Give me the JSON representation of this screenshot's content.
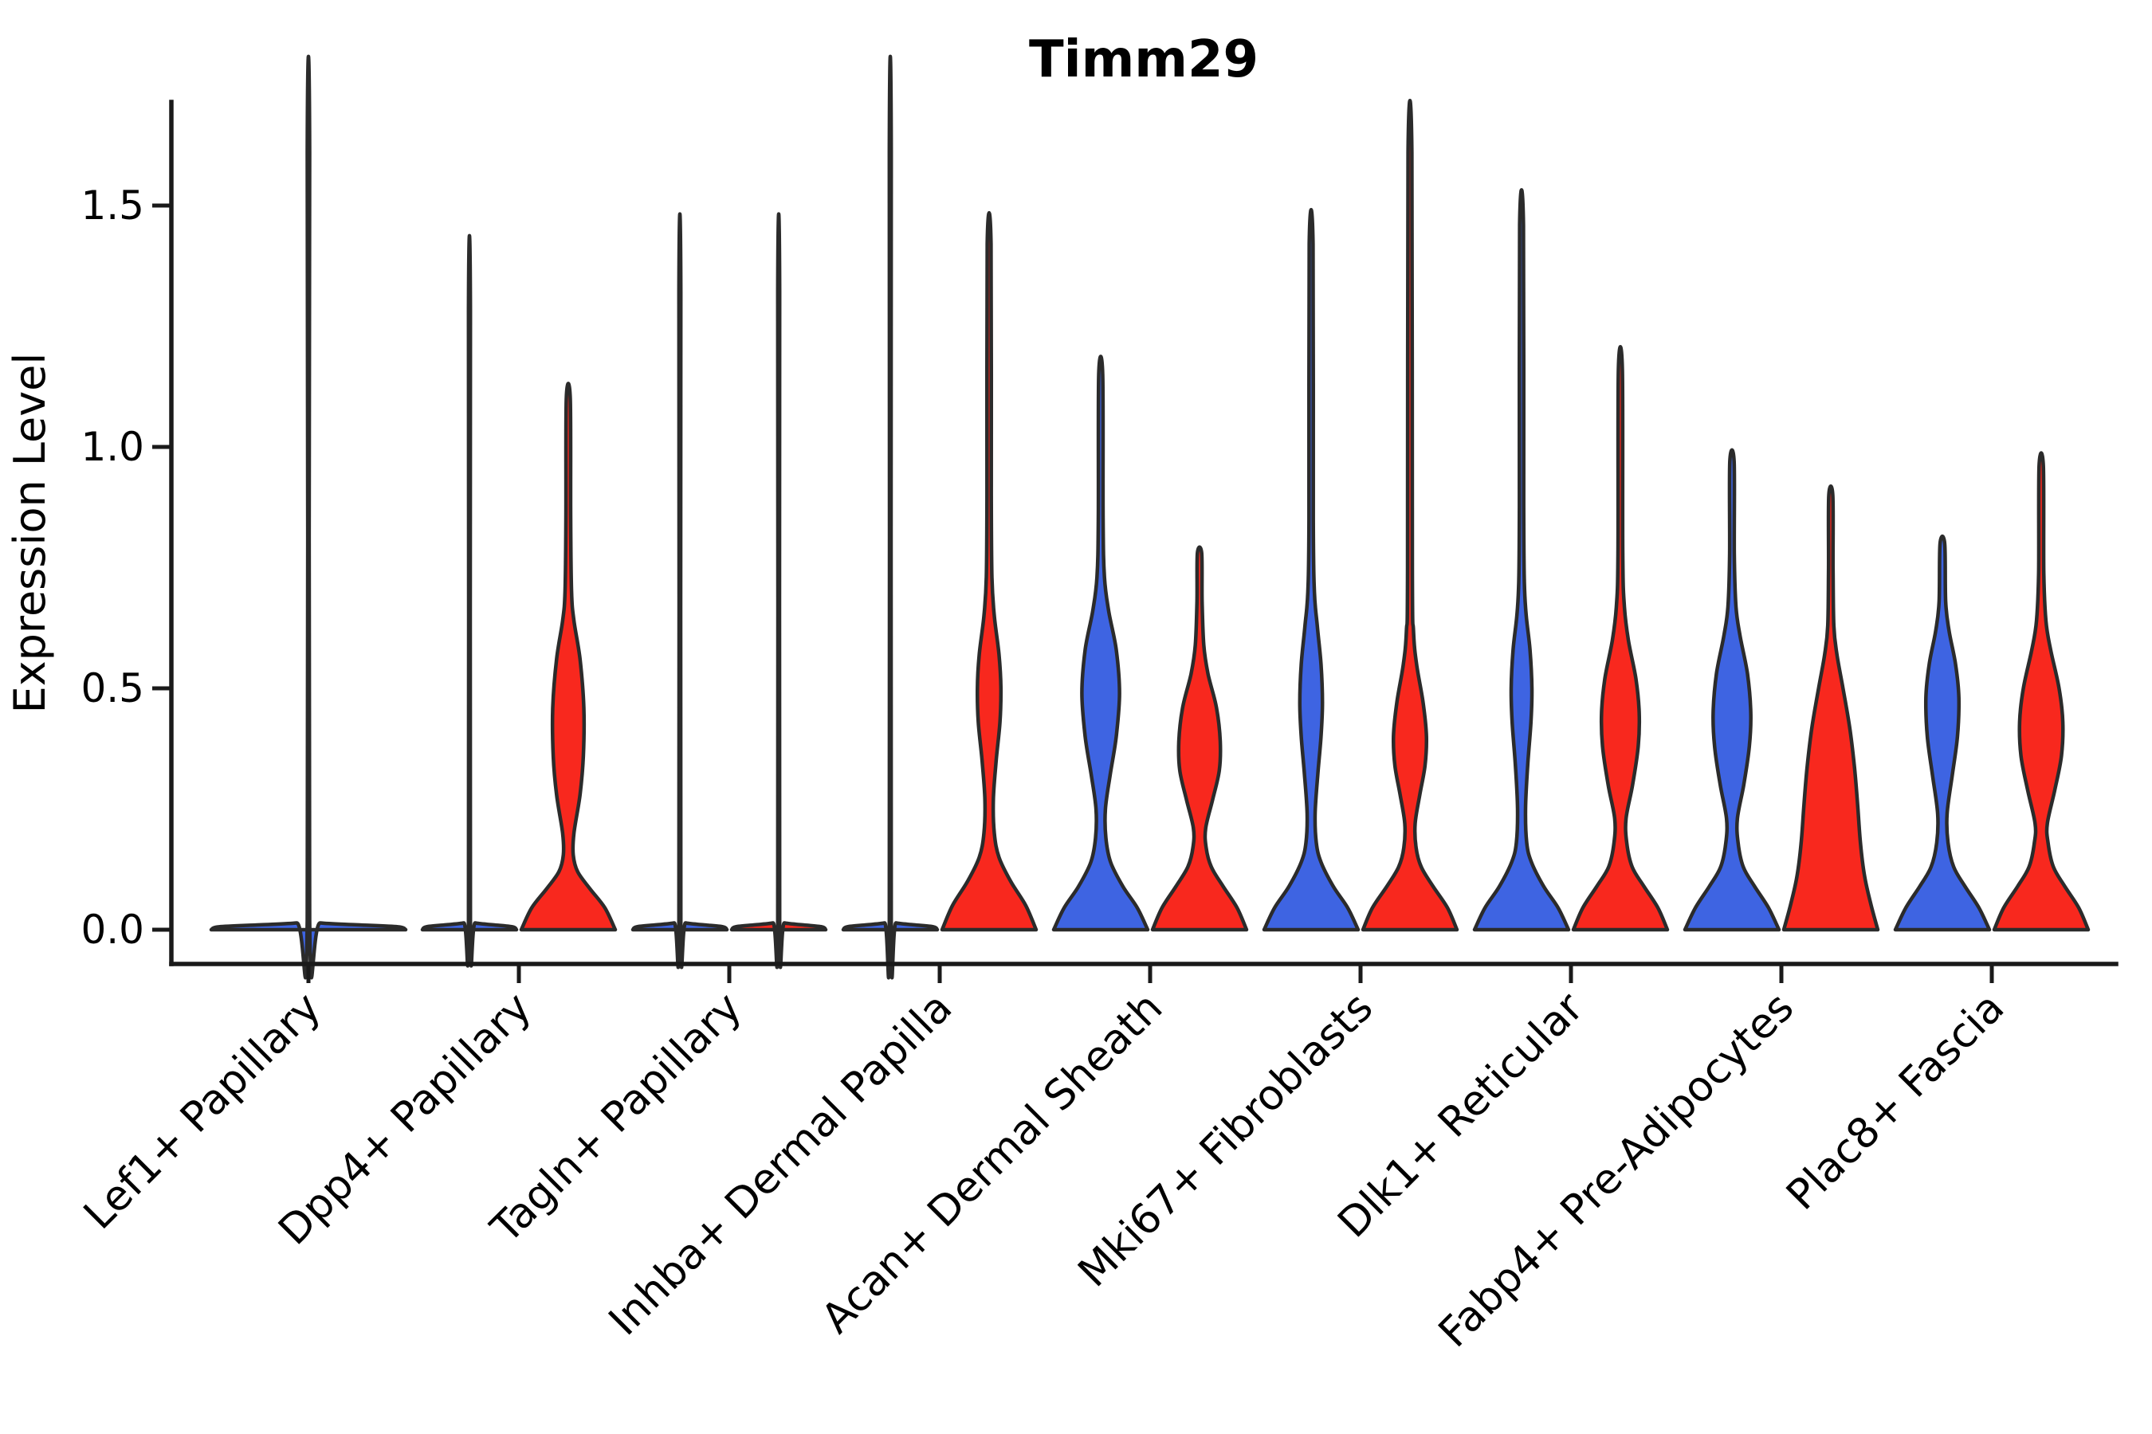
{
  "title": "Timm29",
  "y_axis": {
    "label": "Expression Level",
    "tick_labels": [
      "0.0",
      "0.5",
      "1.0",
      "1.5"
    ]
  },
  "x_axis": {
    "categories": [
      "Lef1+ Papillary",
      "Dpp4+ Papillary",
      "Tagln+ Papillary",
      "Inhba+ Dermal Papilla",
      "Acan+ Dermal Sheath",
      "Mki67+ Fibroblasts",
      "Dlk1+ Reticular",
      "Fabp4+ Pre-Adipocytes",
      "Plac8+ Fascia"
    ]
  },
  "colors": {
    "blue": "#3E64E2",
    "red": "#F8281E",
    "outline": "#2B2B2B",
    "axis": "#1a1a1a",
    "background": "#FFFFFF"
  },
  "chart_data": {
    "type": "violin",
    "title": "Timm29",
    "xlabel": "",
    "ylabel": "Expression Level",
    "ylim": [
      -0.07,
      1.72
    ],
    "y_tick_values": [
      0.0,
      0.5,
      1.0,
      1.5
    ],
    "grid": false,
    "legend": "none",
    "categories": [
      "Lef1+ Papillary",
      "Dpp4+ Papillary",
      "Tagln+ Papillary",
      "Inhba+ Dermal Papilla",
      "Acan+ Dermal Sheath",
      "Mki67+ Fibroblasts",
      "Dlk1+ Reticular",
      "Fabp4+ Pre-Adipocytes",
      "Plac8+ Fascia"
    ],
    "series": [
      {
        "name": "blue",
        "max_values": [
          1.61,
          1.28,
          1.32,
          1.61,
          1.15,
          1.42,
          1.46,
          0.97,
          0.8
        ]
      },
      {
        "name": "red",
        "max_values": [
          null,
          1.1,
          1.32,
          1.42,
          0.78,
          1.61,
          1.16,
          0.9,
          0.96
        ]
      }
    ],
    "violins": [
      {
        "category": "Lef1+ Papillary",
        "color": "blue",
        "side": "full",
        "flat": true,
        "max": 1.61,
        "profile": [
          [
            0,
            1
          ],
          [
            0.006,
            0.92
          ],
          [
            0.01,
            0.5
          ],
          [
            0.014,
            0.12
          ],
          [
            0.02,
            0.012
          ],
          [
            1.61,
            0.012
          ]
        ]
      },
      {
        "category": "Dpp4+ Papillary",
        "color": "blue",
        "side": "left",
        "flat": true,
        "max": 1.28,
        "profile": [
          [
            0,
            1
          ],
          [
            0.006,
            0.92
          ],
          [
            0.01,
            0.5
          ],
          [
            0.014,
            0.12
          ],
          [
            0.02,
            0.02
          ],
          [
            1.28,
            0.02
          ]
        ]
      },
      {
        "category": "Dpp4+ Papillary",
        "color": "red",
        "side": "right",
        "flat": false,
        "max": 1.1,
        "profile": [
          [
            0,
            1
          ],
          [
            0.045,
            0.78
          ],
          [
            0.085,
            0.46
          ],
          [
            0.12,
            0.2
          ],
          [
            0.155,
            0.105
          ],
          [
            0.2,
            0.12
          ],
          [
            0.28,
            0.25
          ],
          [
            0.36,
            0.32
          ],
          [
            0.46,
            0.33
          ],
          [
            0.56,
            0.25
          ],
          [
            0.64,
            0.12
          ],
          [
            0.7,
            0.07
          ],
          [
            0.85,
            0.05
          ],
          [
            1.1,
            0.042
          ]
        ]
      },
      {
        "category": "Tagln+ Papillary",
        "color": "blue",
        "side": "left",
        "flat": true,
        "max": 1.32,
        "profile": [
          [
            0,
            1
          ],
          [
            0.006,
            0.92
          ],
          [
            0.01,
            0.5
          ],
          [
            0.014,
            0.12
          ],
          [
            0.02,
            0.02
          ],
          [
            1.32,
            0.02
          ]
        ]
      },
      {
        "category": "Tagln+ Papillary",
        "color": "red",
        "side": "right",
        "flat": true,
        "max": 1.32,
        "profile": [
          [
            0,
            1
          ],
          [
            0.006,
            0.92
          ],
          [
            0.01,
            0.5
          ],
          [
            0.014,
            0.12
          ],
          [
            0.02,
            0.02
          ],
          [
            1.32,
            0.02
          ]
        ]
      },
      {
        "category": "Inhba+ Dermal Papilla",
        "color": "blue",
        "side": "left",
        "flat": true,
        "max": 1.61,
        "profile": [
          [
            0,
            1
          ],
          [
            0.006,
            0.92
          ],
          [
            0.01,
            0.5
          ],
          [
            0.014,
            0.12
          ],
          [
            0.02,
            0.02
          ],
          [
            1.61,
            0.02
          ]
        ]
      },
      {
        "category": "Inhba+ Dermal Papilla",
        "color": "red",
        "side": "right",
        "flat": false,
        "max": 1.42,
        "profile": [
          [
            0,
            1
          ],
          [
            0.05,
            0.78
          ],
          [
            0.1,
            0.46
          ],
          [
            0.15,
            0.21
          ],
          [
            0.2,
            0.11
          ],
          [
            0.27,
            0.09
          ],
          [
            0.35,
            0.15
          ],
          [
            0.43,
            0.23
          ],
          [
            0.5,
            0.25
          ],
          [
            0.57,
            0.21
          ],
          [
            0.65,
            0.11
          ],
          [
            0.73,
            0.06
          ],
          [
            0.9,
            0.045
          ],
          [
            1.42,
            0.04
          ]
        ]
      },
      {
        "category": "Acan+ Dermal Sheath",
        "color": "blue",
        "side": "left",
        "flat": false,
        "max": 1.15,
        "profile": [
          [
            0,
            1
          ],
          [
            0.045,
            0.78
          ],
          [
            0.09,
            0.47
          ],
          [
            0.14,
            0.21
          ],
          [
            0.19,
            0.11
          ],
          [
            0.25,
            0.1
          ],
          [
            0.32,
            0.2
          ],
          [
            0.4,
            0.33
          ],
          [
            0.49,
            0.4
          ],
          [
            0.58,
            0.33
          ],
          [
            0.66,
            0.17
          ],
          [
            0.73,
            0.08
          ],
          [
            0.85,
            0.05
          ],
          [
            1.15,
            0.042
          ]
        ]
      },
      {
        "category": "Acan+ Dermal Sheath",
        "color": "red",
        "side": "right",
        "flat": false,
        "max": 0.78,
        "profile": [
          [
            0,
            1
          ],
          [
            0.045,
            0.8
          ],
          [
            0.09,
            0.5
          ],
          [
            0.13,
            0.25
          ],
          [
            0.17,
            0.14
          ],
          [
            0.21,
            0.13
          ],
          [
            0.27,
            0.28
          ],
          [
            0.33,
            0.42
          ],
          [
            0.39,
            0.44
          ],
          [
            0.46,
            0.36
          ],
          [
            0.53,
            0.18
          ],
          [
            0.59,
            0.09
          ],
          [
            0.68,
            0.055
          ],
          [
            0.78,
            0.045
          ]
        ]
      },
      {
        "category": "Mki67+ Fibroblasts",
        "color": "blue",
        "side": "left",
        "flat": false,
        "max": 1.42,
        "profile": [
          [
            0,
            1
          ],
          [
            0.045,
            0.78
          ],
          [
            0.09,
            0.47
          ],
          [
            0.14,
            0.21
          ],
          [
            0.18,
            0.11
          ],
          [
            0.24,
            0.085
          ],
          [
            0.32,
            0.14
          ],
          [
            0.4,
            0.21
          ],
          [
            0.47,
            0.24
          ],
          [
            0.55,
            0.21
          ],
          [
            0.63,
            0.13
          ],
          [
            0.7,
            0.07
          ],
          [
            0.85,
            0.045
          ],
          [
            1.42,
            0.04
          ]
        ]
      },
      {
        "category": "Mki67+ Fibroblasts",
        "color": "red",
        "side": "right",
        "flat": false,
        "max": 1.61,
        "profile": [
          [
            0,
            1
          ],
          [
            0.045,
            0.8
          ],
          [
            0.09,
            0.49
          ],
          [
            0.13,
            0.24
          ],
          [
            0.17,
            0.13
          ],
          [
            0.22,
            0.11
          ],
          [
            0.28,
            0.21
          ],
          [
            0.34,
            0.32
          ],
          [
            0.4,
            0.35
          ],
          [
            0.47,
            0.28
          ],
          [
            0.55,
            0.14
          ],
          [
            0.62,
            0.075
          ],
          [
            0.75,
            0.05
          ],
          [
            1.61,
            0.04
          ]
        ]
      },
      {
        "category": "Dlk1+ Reticular",
        "color": "blue",
        "side": "left",
        "flat": false,
        "max": 1.46,
        "profile": [
          [
            0,
            1
          ],
          [
            0.045,
            0.78
          ],
          [
            0.09,
            0.47
          ],
          [
            0.14,
            0.21
          ],
          [
            0.18,
            0.11
          ],
          [
            0.25,
            0.085
          ],
          [
            0.34,
            0.13
          ],
          [
            0.43,
            0.2
          ],
          [
            0.5,
            0.22
          ],
          [
            0.58,
            0.18
          ],
          [
            0.65,
            0.1
          ],
          [
            0.72,
            0.06
          ],
          [
            0.88,
            0.045
          ],
          [
            1.46,
            0.04
          ]
        ]
      },
      {
        "category": "Dlk1+ Reticular",
        "color": "red",
        "side": "right",
        "flat": false,
        "max": 1.16,
        "profile": [
          [
            0,
            1
          ],
          [
            0.045,
            0.8
          ],
          [
            0.09,
            0.5
          ],
          [
            0.13,
            0.25
          ],
          [
            0.18,
            0.135
          ],
          [
            0.23,
            0.12
          ],
          [
            0.3,
            0.26
          ],
          [
            0.38,
            0.38
          ],
          [
            0.45,
            0.4
          ],
          [
            0.52,
            0.33
          ],
          [
            0.6,
            0.17
          ],
          [
            0.67,
            0.085
          ],
          [
            0.78,
            0.05
          ],
          [
            1.16,
            0.042
          ]
        ]
      },
      {
        "category": "Fabp4+ Pre-Adipocytes",
        "color": "blue",
        "side": "left",
        "flat": false,
        "max": 0.97,
        "profile": [
          [
            0,
            1
          ],
          [
            0.045,
            0.78
          ],
          [
            0.09,
            0.48
          ],
          [
            0.13,
            0.24
          ],
          [
            0.18,
            0.13
          ],
          [
            0.23,
            0.115
          ],
          [
            0.3,
            0.25
          ],
          [
            0.38,
            0.37
          ],
          [
            0.45,
            0.4
          ],
          [
            0.53,
            0.33
          ],
          [
            0.61,
            0.17
          ],
          [
            0.67,
            0.085
          ],
          [
            0.78,
            0.05
          ],
          [
            0.97,
            0.045
          ]
        ]
      },
      {
        "category": "Fabp4+ Pre-Adipocytes",
        "color": "red",
        "side": "right",
        "flat": false,
        "max": 0.9,
        "profile": [
          [
            0,
            1
          ],
          [
            0.05,
            0.86
          ],
          [
            0.11,
            0.72
          ],
          [
            0.18,
            0.63
          ],
          [
            0.26,
            0.57
          ],
          [
            0.34,
            0.5
          ],
          [
            0.42,
            0.4
          ],
          [
            0.5,
            0.26
          ],
          [
            0.57,
            0.13
          ],
          [
            0.63,
            0.065
          ],
          [
            0.75,
            0.048
          ],
          [
            0.9,
            0.042
          ]
        ]
      },
      {
        "category": "Plac8+ Fascia",
        "color": "blue",
        "side": "left",
        "flat": false,
        "max": 0.8,
        "profile": [
          [
            0,
            1
          ],
          [
            0.045,
            0.78
          ],
          [
            0.09,
            0.48
          ],
          [
            0.13,
            0.24
          ],
          [
            0.18,
            0.12
          ],
          [
            0.24,
            0.1
          ],
          [
            0.32,
            0.21
          ],
          [
            0.4,
            0.32
          ],
          [
            0.48,
            0.35
          ],
          [
            0.55,
            0.28
          ],
          [
            0.62,
            0.14
          ],
          [
            0.68,
            0.07
          ],
          [
            0.8,
            0.05
          ]
        ]
      },
      {
        "category": "Plac8+ Fascia",
        "color": "red",
        "side": "right",
        "flat": false,
        "max": 0.96,
        "profile": [
          [
            0,
            1
          ],
          [
            0.045,
            0.8
          ],
          [
            0.09,
            0.5
          ],
          [
            0.13,
            0.26
          ],
          [
            0.18,
            0.145
          ],
          [
            0.22,
            0.13
          ],
          [
            0.29,
            0.29
          ],
          [
            0.36,
            0.43
          ],
          [
            0.43,
            0.46
          ],
          [
            0.5,
            0.38
          ],
          [
            0.58,
            0.2
          ],
          [
            0.64,
            0.1
          ],
          [
            0.74,
            0.055
          ],
          [
            0.96,
            0.045
          ]
        ]
      }
    ]
  }
}
